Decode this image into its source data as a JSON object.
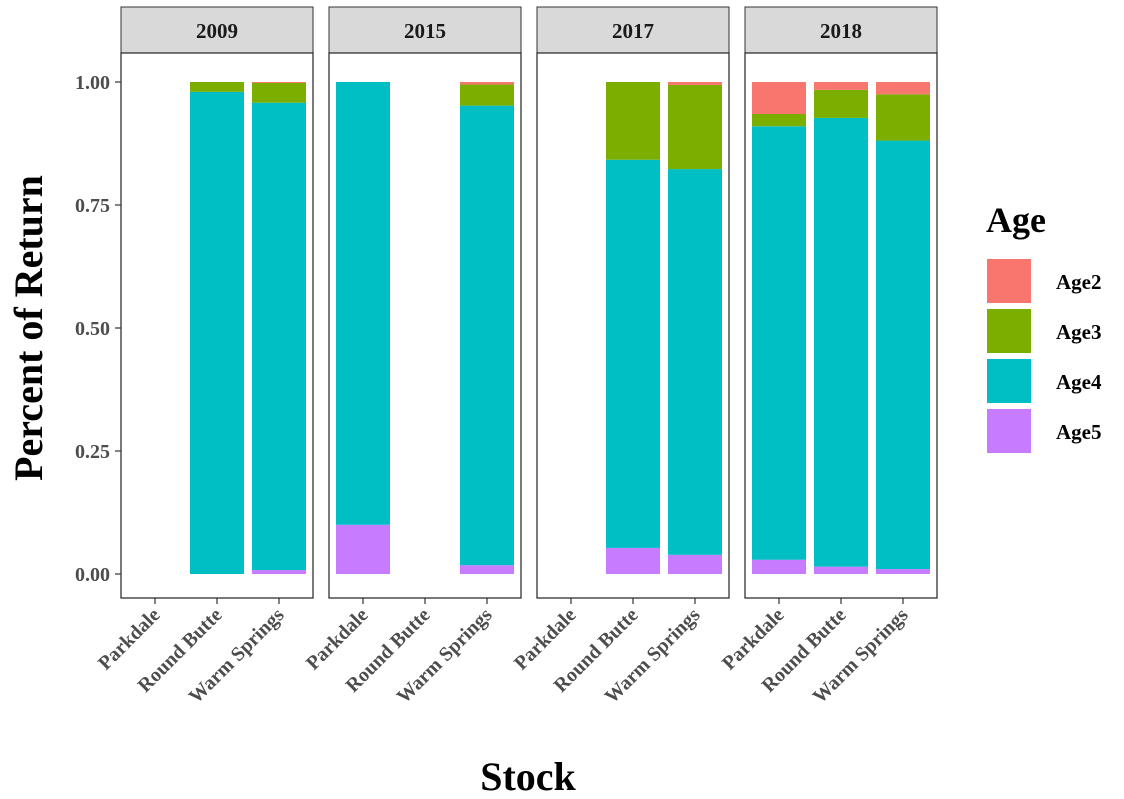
{
  "chart_data": {
    "type": "bar",
    "stacked": true,
    "facet_by": "Year",
    "facets": [
      "2009",
      "2015",
      "2017",
      "2018"
    ],
    "categories": [
      "Parkdale",
      "Round Butte",
      "Warm Springs"
    ],
    "xlabel": "Stock",
    "ylabel": "Percent of Return",
    "ylim": [
      0,
      1
    ],
    "yticks": [
      "0.00",
      "0.25",
      "0.50",
      "0.75",
      "1.00"
    ],
    "legend": {
      "title": "Age",
      "position": "right"
    },
    "series": [
      {
        "name": "Age2",
        "color": "#F8766D"
      },
      {
        "name": "Age3",
        "color": "#7CAE00"
      },
      {
        "name": "Age4",
        "color": "#00BFC4"
      },
      {
        "name": "Age5",
        "color": "#C77CFF"
      }
    ],
    "data": {
      "2009": {
        "Parkdale": null,
        "Round Butte": {
          "Age2": 0.0,
          "Age3": 0.02,
          "Age4": 0.98,
          "Age5": 0.0
        },
        "Warm Springs": {
          "Age2": 0.002,
          "Age3": 0.04,
          "Age4": 0.95,
          "Age5": 0.008
        }
      },
      "2015": {
        "Parkdale": {
          "Age2": 0.0,
          "Age3": 0.0,
          "Age4": 0.9,
          "Age5": 0.1
        },
        "Round Butte": null,
        "Warm Springs": {
          "Age2": 0.005,
          "Age3": 0.043,
          "Age4": 0.934,
          "Age5": 0.018
        }
      },
      "2017": {
        "Parkdale": null,
        "Round Butte": {
          "Age2": 0.0,
          "Age3": 0.158,
          "Age4": 0.789,
          "Age5": 0.053
        },
        "Warm Springs": {
          "Age2": 0.006,
          "Age3": 0.171,
          "Age4": 0.784,
          "Age5": 0.039
        }
      },
      "2018": {
        "Parkdale": {
          "Age2": 0.065,
          "Age3": 0.025,
          "Age4": 0.881,
          "Age5": 0.029
        },
        "Round Butte": {
          "Age2": 0.016,
          "Age3": 0.057,
          "Age4": 0.912,
          "Age5": 0.015
        },
        "Warm Springs": {
          "Age2": 0.025,
          "Age3": 0.094,
          "Age4": 0.871,
          "Age5": 0.01
        }
      }
    }
  }
}
